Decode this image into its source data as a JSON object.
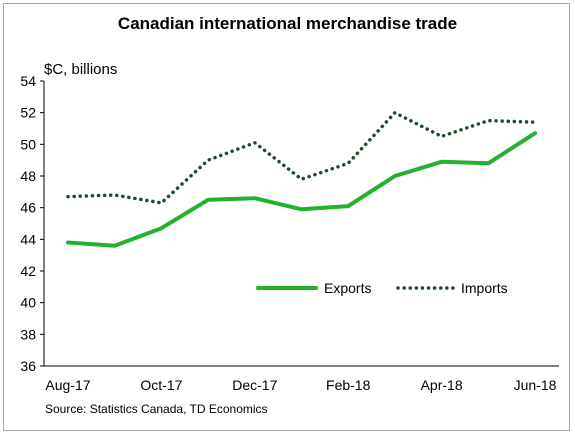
{
  "chart_data": {
    "type": "line",
    "title": "Canadian international merchandise trade",
    "ylabel": "$C, billions",
    "xlabel": "",
    "source": "Source: Statistics Canada, TD Economics",
    "ylim": [
      36,
      54
    ],
    "yticks": [
      "36",
      "38",
      "40",
      "42",
      "44",
      "46",
      "48",
      "50",
      "52",
      "54"
    ],
    "x": [
      "Aug-17",
      "Sep-17",
      "Oct-17",
      "Nov-17",
      "Dec-17",
      "Jan-18",
      "Feb-18",
      "Mar-18",
      "Apr-18",
      "May-18",
      "Jun-18"
    ],
    "x_tick_labels": [
      "Aug-17",
      "Oct-17",
      "Dec-17",
      "Feb-18",
      "Apr-18",
      "Jun-18"
    ],
    "series": [
      {
        "name": "Exports",
        "style": "solid",
        "color": "#22b22e",
        "values": [
          43.8,
          43.6,
          44.7,
          46.5,
          46.6,
          45.9,
          46.1,
          48.0,
          48.9,
          48.8,
          50.7
        ]
      },
      {
        "name": "Imports",
        "style": "dotted",
        "color": "#1e4d2b",
        "values": [
          46.7,
          46.8,
          46.3,
          49.0,
          50.1,
          47.8,
          48.8,
          52.0,
          50.5,
          51.5,
          51.4
        ]
      }
    ],
    "grid": false,
    "legend_position": "bottom-right"
  }
}
